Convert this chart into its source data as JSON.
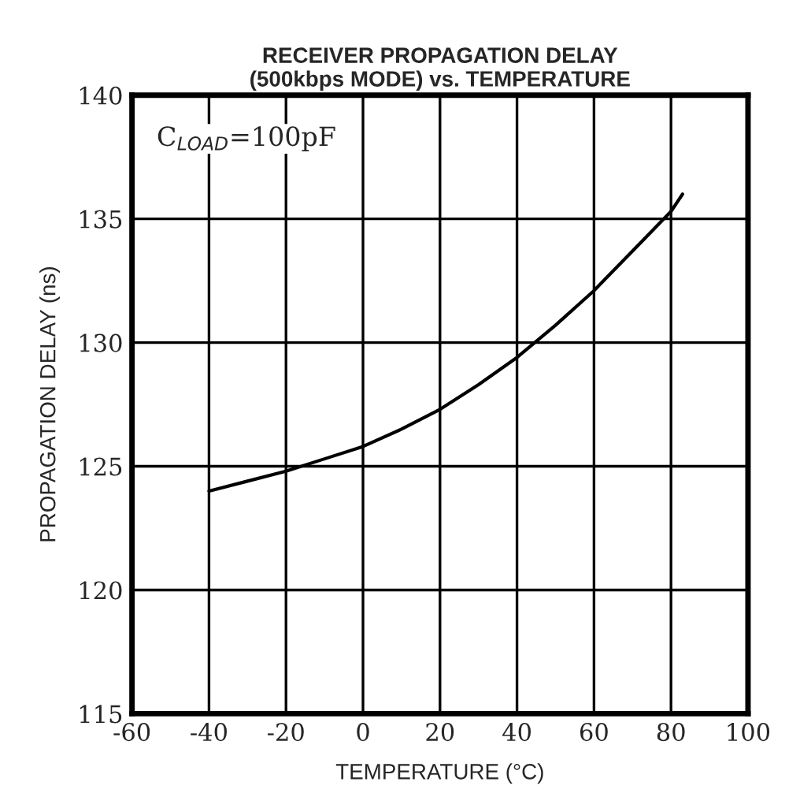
{
  "chart_data": {
    "type": "line",
    "title": "RECEIVER PROPAGATION DELAY\n(500kbps MODE) vs. TEMPERATURE",
    "xlabel": "TEMPERATURE (°C)",
    "ylabel": "PROPAGATION DELAY (ns)",
    "annotations": [
      "C$_{LOAD}$=100pF"
    ],
    "series": [
      {
        "color": "#000000",
        "x": [
          -40,
          -30,
          -20,
          -10,
          0,
          10,
          20,
          30,
          40,
          50,
          60,
          70,
          80,
          83
        ],
        "values": [
          124.0,
          124.4,
          124.8,
          125.3,
          125.8,
          126.5,
          127.3,
          128.3,
          129.4,
          130.7,
          132.1,
          133.7,
          135.3,
          136.0
        ]
      }
    ],
    "xlim": [
      -60,
      100
    ],
    "xticks": [
      -60,
      -40,
      -20,
      0,
      20,
      40,
      60,
      80,
      100
    ],
    "ylim": [
      115,
      140
    ],
    "yticks": [
      115,
      120,
      125,
      130,
      135,
      140
    ],
    "grid": true,
    "legend": false,
    "marker": "none",
    "line_style": "solid"
  }
}
